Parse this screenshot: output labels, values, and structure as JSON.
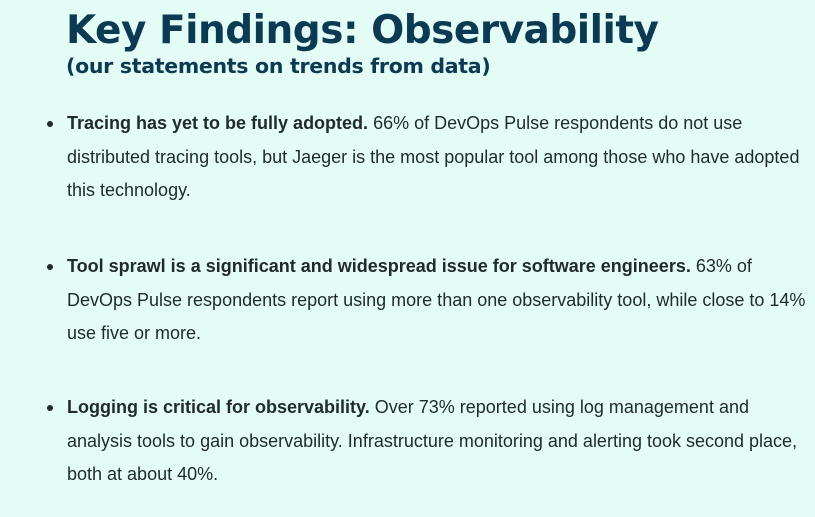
{
  "header": {
    "title": "Key Findings: Observability",
    "subtitle": "(our statements on trends from data)"
  },
  "findings": [
    {
      "lead": "Tracing has yet to be fully adopted.",
      "body": "66% of DevOps Pulse respondents do not use distributed tracing tools, but Jaeger is the most popular tool among those who have adopted this technology."
    },
    {
      "lead": "Tool sprawl is a significant and widespread issue for software engineers.",
      "body": "63% of DevOps Pulse respondents report using more than one observability tool, while close to 14% use five or more."
    },
    {
      "lead": "Logging is critical for observability.",
      "body": "Over 73% reported using log management and analysis tools to gain observability. Infrastructure monitoring and alerting took second place, both at about 40%."
    }
  ]
}
